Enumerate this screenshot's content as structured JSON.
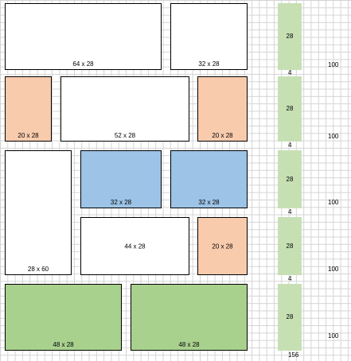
{
  "colors": {
    "white": "#ffffff",
    "peach": "#f8cbad",
    "blue": "#9dc3e6",
    "green": "#a9d18e",
    "column_green": "#c6e0b4",
    "gridline": "#d4d4d4",
    "border": "#000000"
  },
  "tiles": [
    {
      "name": "tile-64x28",
      "label": "64 x 28",
      "color": "white"
    },
    {
      "name": "tile-32x28-top",
      "label": "32 x 28",
      "color": "white"
    },
    {
      "name": "tile-20x28-left",
      "label": "20 x 28",
      "color": "peach"
    },
    {
      "name": "tile-52x28",
      "label": "52 x 28",
      "color": "white"
    },
    {
      "name": "tile-20x28-right",
      "label": "20 x 28",
      "color": "peach"
    },
    {
      "name": "tile-28x60",
      "label": "28 x 60",
      "color": "white"
    },
    {
      "name": "tile-32x28-blue-left",
      "label": "32 x 28",
      "color": "blue"
    },
    {
      "name": "tile-32x28-blue-right",
      "label": "32 x 28",
      "color": "blue"
    },
    {
      "name": "tile-44x28",
      "label": "44 x 28",
      "color": "white"
    },
    {
      "name": "tile-20x28-lower",
      "label": "20 x 28",
      "color": "peach"
    },
    {
      "name": "tile-48x28-left",
      "label": "48 x 28",
      "color": "green"
    },
    {
      "name": "tile-48x28-right",
      "label": "48 x 28",
      "color": "green"
    }
  ],
  "column": {
    "row_heights": [
      "28",
      "28",
      "28",
      "28",
      "28"
    ],
    "gaps": [
      "4",
      "4",
      "4",
      "4"
    ],
    "total": "156"
  },
  "widths": [
    "100",
    "100",
    "100",
    "100",
    "100"
  ]
}
